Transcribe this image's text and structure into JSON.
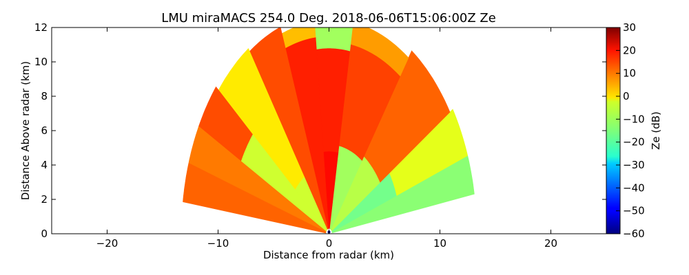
{
  "figure": {
    "title": "LMU miraMACS 254.0 Deg. 2018-06-06T15:06:00Z  Ze"
  },
  "chart_data": {
    "type": "heatmap",
    "subtype": "radar RHI reflectivity",
    "title": "LMU miraMACS 254.0 Deg. 2018-06-06T15:06:00Z  Ze",
    "xlabel": "Distance from radar (km)",
    "ylabel": "Distance Above radar  (km)",
    "xlim": [
      -25,
      25
    ],
    "ylim": [
      0,
      12
    ],
    "xticks": [
      "−20",
      "−10",
      "0",
      "10",
      "20"
    ],
    "xtick_values": [
      -20,
      -10,
      0,
      10,
      20
    ],
    "yticks": [
      "0",
      "2",
      "4",
      "6",
      "8",
      "10",
      "12"
    ],
    "ytick_values": [
      0,
      2,
      4,
      6,
      8,
      10,
      12
    ],
    "colorbar": {
      "label": "Ze (dB)",
      "range": [
        -60,
        30
      ],
      "ticks": [
        "30",
        "20",
        "10",
        "0",
        "−10",
        "−20",
        "−30",
        "−40",
        "−50",
        "−60"
      ],
      "tick_values": [
        30,
        20,
        10,
        0,
        -10,
        -20,
        -30,
        -40,
        -50,
        -60
      ],
      "colormap": "jet"
    },
    "scan": {
      "max_range_km": 13.5,
      "elevation_min_deg": 10,
      "elevation_max_deg": 172
    },
    "regions": [
      {
        "theta_deg": [
          10,
          20
        ],
        "r_km": [
          0.3,
          13.3
        ],
        "ze_db": -14
      },
      {
        "theta_deg": [
          20,
          33
        ],
        "r_km": [
          0.3,
          6.5
        ],
        "ze_db": -16
      },
      {
        "theta_deg": [
          20,
          33
        ],
        "r_km": [
          6.5,
          13.3
        ],
        "ze_db": -6
      },
      {
        "theta_deg": [
          33,
          55
        ],
        "r_km": [
          0.3,
          5.5
        ],
        "ze_db": -10
      },
      {
        "theta_deg": [
          33,
          55
        ],
        "r_km": [
          5.5,
          13.0
        ],
        "ze_db": 10
      },
      {
        "theta_deg": [
          55,
          80
        ],
        "r_km": [
          0.3,
          5.2
        ],
        "ze_db": -12
      },
      {
        "theta_deg": [
          55,
          80
        ],
        "r_km": [
          5.2,
          11.2
        ],
        "ze_db": 13
      },
      {
        "theta_deg": [
          55,
          80
        ],
        "r_km": [
          11.2,
          12.5
        ],
        "ze_db": 5
      },
      {
        "theta_deg": [
          80,
          96
        ],
        "r_km": [
          0.3,
          4.8
        ],
        "ze_db": 18
      },
      {
        "theta_deg": [
          80,
          96
        ],
        "r_km": [
          4.8,
          10.8
        ],
        "ze_db": 16
      },
      {
        "theta_deg": [
          80,
          96
        ],
        "r_km": [
          10.8,
          12.2
        ],
        "ze_db": -12
      },
      {
        "theta_deg": [
          96,
          110
        ],
        "r_km": [
          0.3,
          11.5
        ],
        "ze_db": 16
      },
      {
        "theta_deg": [
          96,
          110
        ],
        "r_km": [
          11.5,
          12.4
        ],
        "ze_db": 2
      },
      {
        "theta_deg": [
          110,
          124
        ],
        "r_km": [
          0.3,
          12.8
        ],
        "ze_db": 12
      },
      {
        "theta_deg": [
          124,
          140
        ],
        "r_km": [
          0.3,
          4.0
        ],
        "ze_db": -8
      },
      {
        "theta_deg": [
          124,
          140
        ],
        "r_km": [
          4.0,
          13.0
        ],
        "ze_db": -2
      },
      {
        "theta_deg": [
          140,
          152
        ],
        "r_km": [
          0.3,
          9.0
        ],
        "ze_db": -8
      },
      {
        "theta_deg": [
          140,
          152
        ],
        "r_km": [
          9.0,
          13.3
        ],
        "ze_db": 12
      },
      {
        "theta_deg": [
          152,
          162
        ],
        "r_km": [
          0.3,
          13.3
        ],
        "ze_db": 8
      },
      {
        "theta_deg": [
          162,
          172
        ],
        "r_km": [
          0.3,
          13.3
        ],
        "ze_db": 10
      }
    ]
  }
}
